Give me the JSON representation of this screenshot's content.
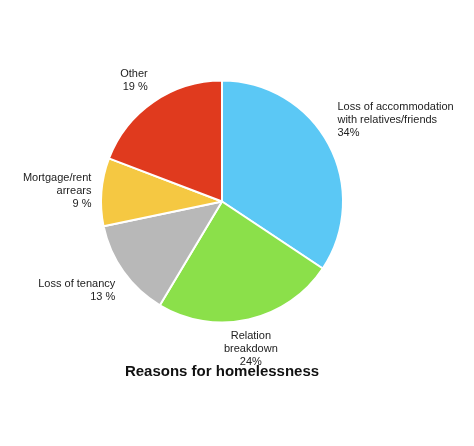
{
  "chart_data": {
    "type": "pie",
    "title": "Reasons for homelessness",
    "categories": [
      "Loss of accommodation\nwith relatives/friends",
      "Relation\nbreakdown",
      "Loss of tenancy",
      "Mortgage/rent\narrears",
      "Other"
    ],
    "values": [
      34,
      24,
      13,
      9,
      19
    ],
    "value_labels": [
      "34%",
      "24%",
      "13 %",
      "9 %",
      "19 %"
    ],
    "colors": [
      "#5BC8F5",
      "#8BE04A",
      "#B8B8B8",
      "#F5C842",
      "#E03A1E"
    ],
    "data_labels": true
  }
}
